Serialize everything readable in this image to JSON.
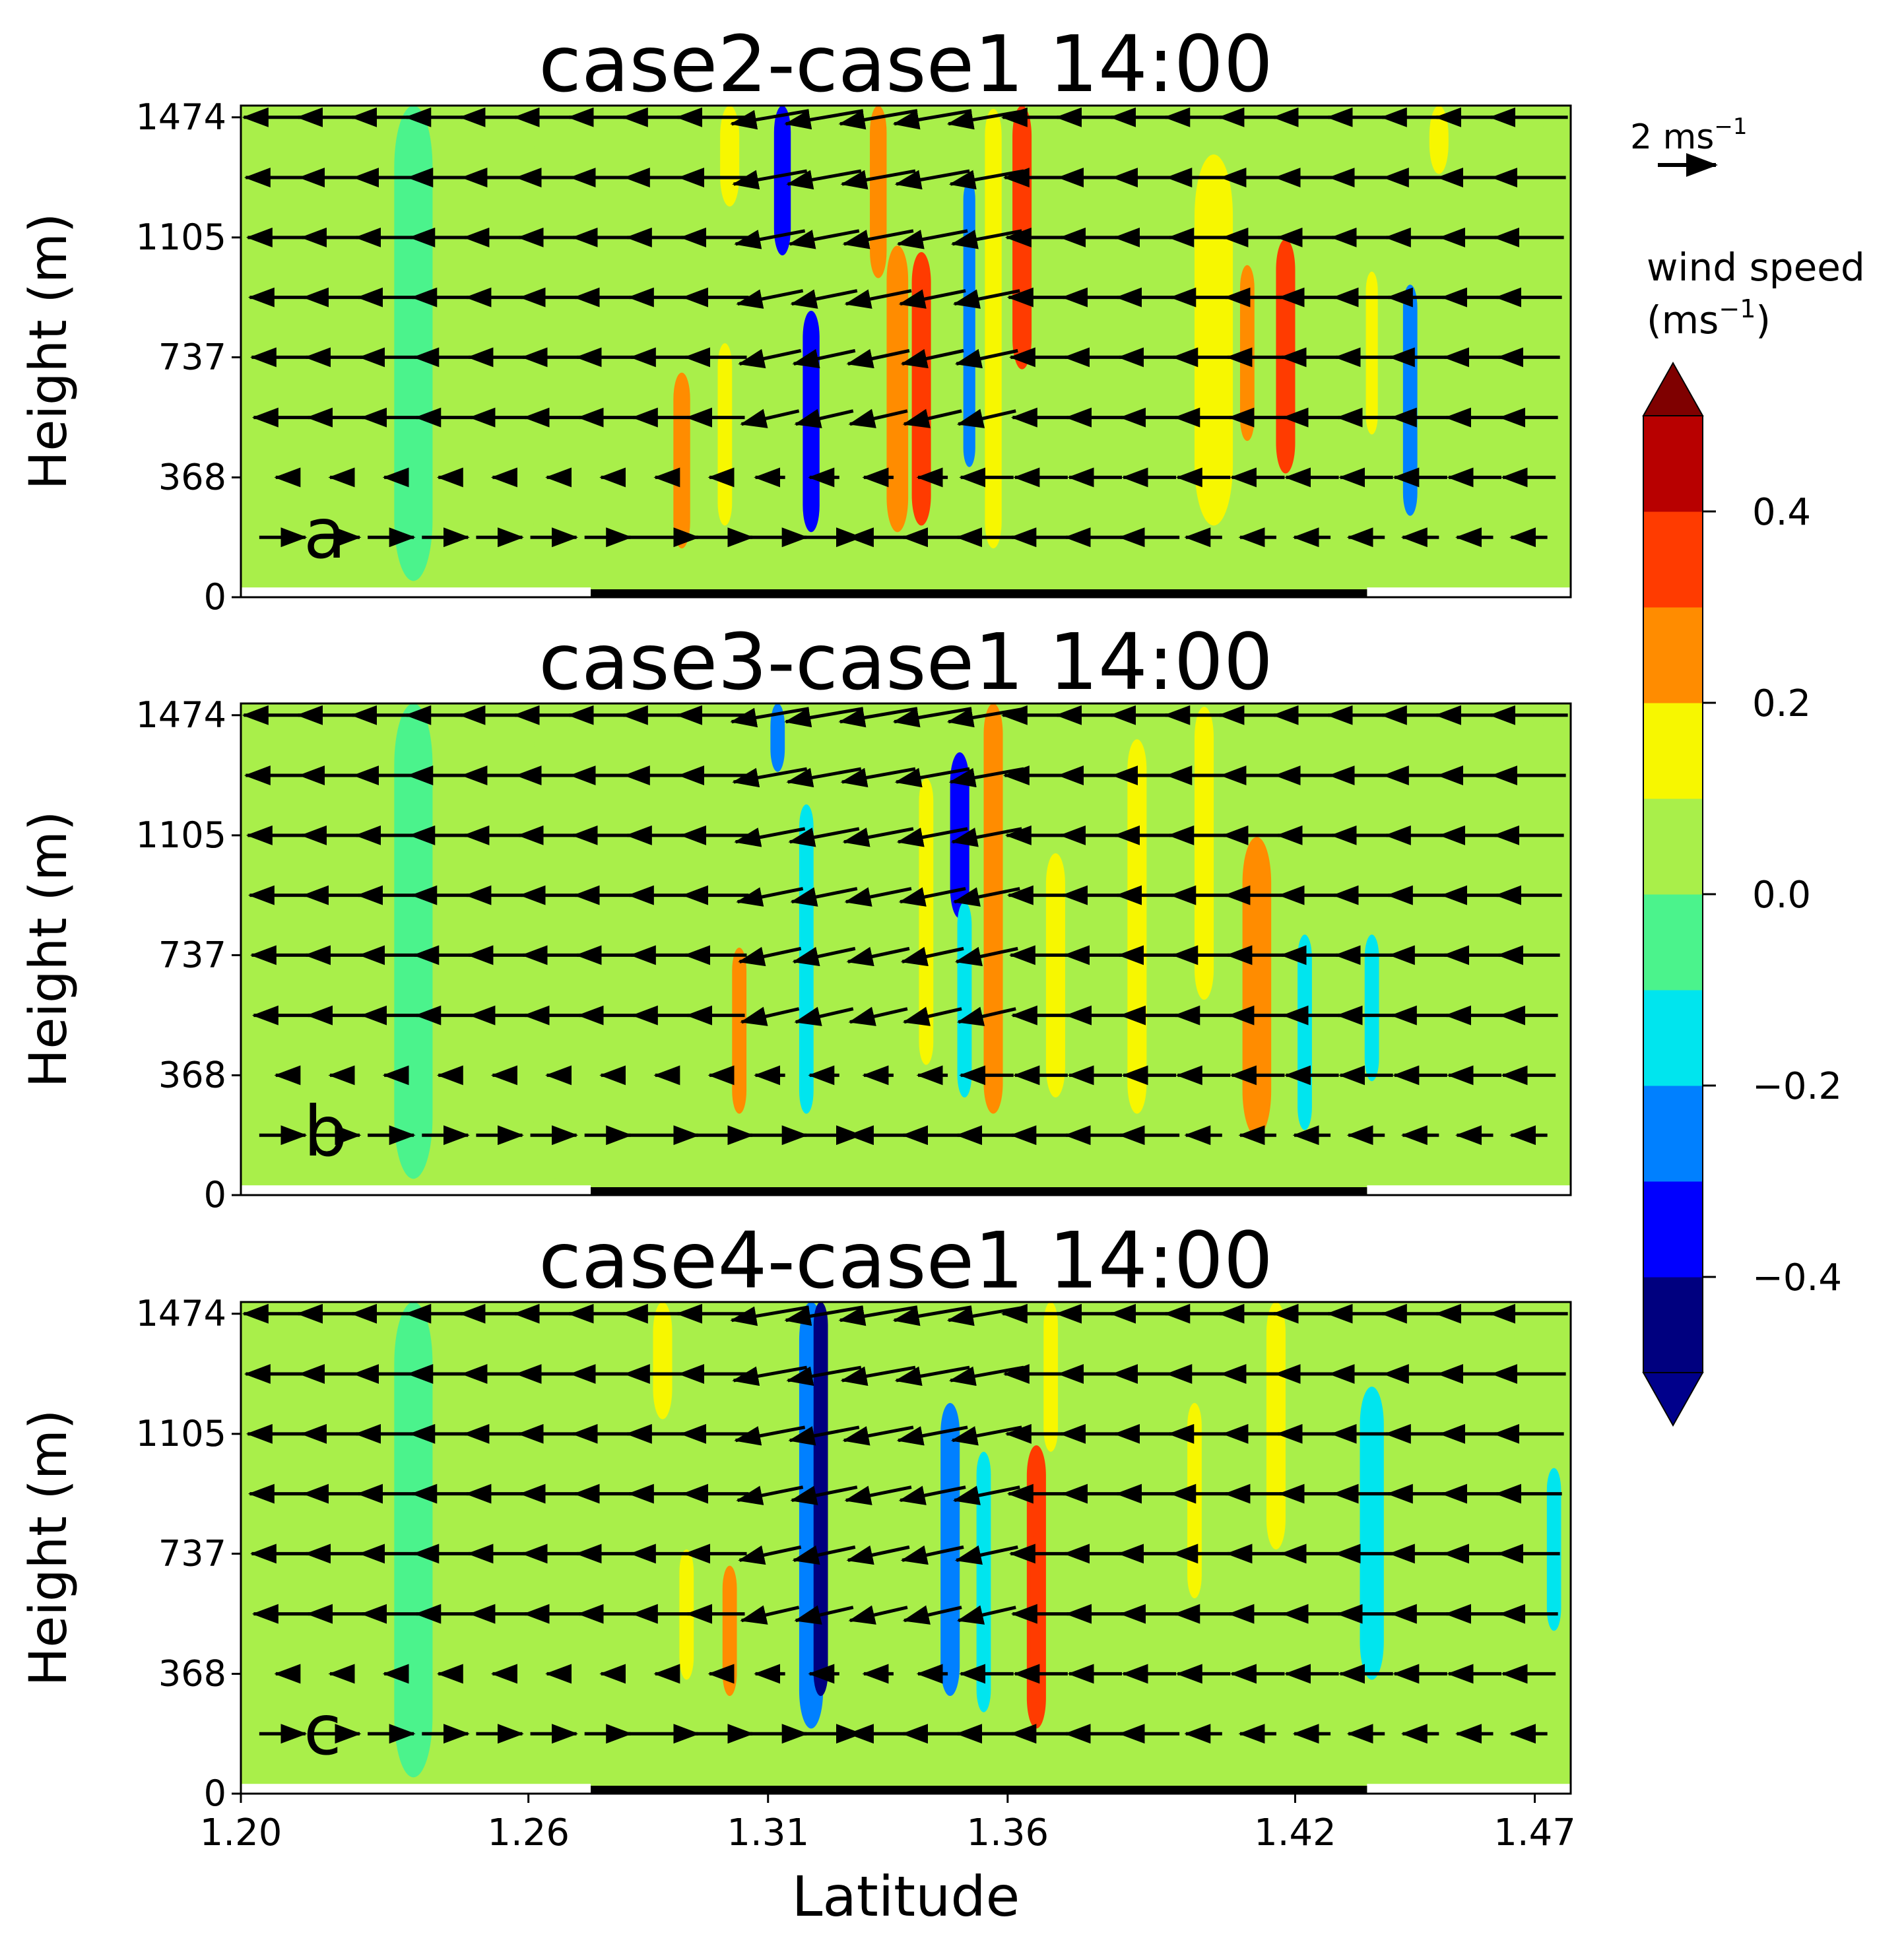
{
  "chart_data": [
    {
      "type": "heatmap",
      "subtype": "filled-contour with wind vectors",
      "panel_label": "a",
      "title": "case2-case1 14:00",
      "xlabel": "",
      "ylabel": "Height (m)",
      "x_ticks": [
        1.2,
        1.26,
        1.31,
        1.36,
        1.42,
        1.47
      ],
      "x_tick_labels": [
        "1.20",
        "1.26",
        "1.31",
        "1.36",
        "1.42",
        "1.47"
      ],
      "y_ticks": [
        0,
        368,
        737,
        1105,
        1474
      ],
      "y_tick_labels": [
        "0",
        "368",
        "737",
        "1105",
        "1474"
      ],
      "xlim": [
        1.2,
        1.4775
      ],
      "ylim": [
        0,
        1510
      ],
      "land_segment": [
        1.273,
        1.435
      ],
      "features": [
        {
          "lat": 1.292,
          "z0": 150,
          "z1": 690,
          "w": 0.0035,
          "v": 0.27
        },
        {
          "lat": 1.301,
          "z0": 220,
          "z1": 780,
          "w": 0.003,
          "v": 0.16
        },
        {
          "lat": 1.302,
          "z0": 1200,
          "z1": 1510,
          "w": 0.004,
          "v": 0.16
        },
        {
          "lat": 1.313,
          "z0": 1050,
          "z1": 1510,
          "w": 0.0035,
          "v": -0.32
        },
        {
          "lat": 1.319,
          "z0": 200,
          "z1": 880,
          "w": 0.0035,
          "v": -0.38
        },
        {
          "lat": 1.333,
          "z0": 980,
          "z1": 1510,
          "w": 0.0035,
          "v": 0.27
        },
        {
          "lat": 1.337,
          "z0": 200,
          "z1": 1080,
          "w": 0.0045,
          "v": 0.22
        },
        {
          "lat": 1.342,
          "z0": 220,
          "z1": 1060,
          "w": 0.004,
          "v": 0.32
        },
        {
          "lat": 1.352,
          "z0": 400,
          "z1": 1280,
          "w": 0.0025,
          "v": -0.3
        },
        {
          "lat": 1.357,
          "z0": 150,
          "z1": 1500,
          "w": 0.0035,
          "v": 0.15
        },
        {
          "lat": 1.363,
          "z0": 700,
          "z1": 1510,
          "w": 0.004,
          "v": 0.34
        },
        {
          "lat": 1.403,
          "z0": 220,
          "z1": 1360,
          "w": 0.008,
          "v": 0.18
        },
        {
          "lat": 1.41,
          "z0": 480,
          "z1": 1020,
          "w": 0.003,
          "v": 0.27
        },
        {
          "lat": 1.418,
          "z0": 380,
          "z1": 1100,
          "w": 0.004,
          "v": 0.3
        },
        {
          "lat": 1.436,
          "z0": 500,
          "z1": 1000,
          "w": 0.0025,
          "v": 0.15
        },
        {
          "lat": 1.444,
          "z0": 250,
          "z1": 960,
          "w": 0.003,
          "v": -0.27
        },
        {
          "lat": 1.45,
          "z0": 1300,
          "z1": 1510,
          "w": 0.004,
          "v": 0.13
        },
        {
          "lat": 1.236,
          "z0": 50,
          "z1": 1510,
          "w": 0.008,
          "v": -0.07
        },
        {
          "lat": 1.265,
          "z0": 50,
          "z1": 1510,
          "w": 0.008,
          "v": 0.06
        },
        {
          "lat": 1.469,
          "z0": 50,
          "z1": 1510,
          "w": 0.007,
          "v": 0.06
        }
      ]
    },
    {
      "type": "heatmap",
      "subtype": "filled-contour with wind vectors",
      "panel_label": "b",
      "title": "case3-case1 14:00",
      "xlabel": "",
      "ylabel": "Height (m)",
      "x_ticks": [
        1.2,
        1.26,
        1.31,
        1.36,
        1.42,
        1.47
      ],
      "x_tick_labels": [
        "1.20",
        "1.26",
        "1.31",
        "1.36",
        "1.42",
        "1.47"
      ],
      "y_ticks": [
        0,
        368,
        737,
        1105,
        1474
      ],
      "y_tick_labels": [
        "0",
        "368",
        "737",
        "1105",
        "1474"
      ],
      "xlim": [
        1.2,
        1.4775
      ],
      "ylim": [
        0,
        1510
      ],
      "land_segment": [
        1.273,
        1.435
      ],
      "features": [
        {
          "lat": 1.304,
          "z0": 250,
          "z1": 760,
          "w": 0.003,
          "v": 0.25
        },
        {
          "lat": 1.312,
          "z0": 1300,
          "z1": 1510,
          "w": 0.003,
          "v": -0.3
        },
        {
          "lat": 1.318,
          "z0": 250,
          "z1": 1200,
          "w": 0.003,
          "v": -0.15
        },
        {
          "lat": 1.343,
          "z0": 400,
          "z1": 1280,
          "w": 0.003,
          "v": 0.12
        },
        {
          "lat": 1.35,
          "z0": 850,
          "z1": 1360,
          "w": 0.004,
          "v": -0.35
        },
        {
          "lat": 1.351,
          "z0": 300,
          "z1": 900,
          "w": 0.003,
          "v": -0.15
        },
        {
          "lat": 1.357,
          "z0": 250,
          "z1": 1510,
          "w": 0.004,
          "v": 0.2
        },
        {
          "lat": 1.37,
          "z0": 300,
          "z1": 1050,
          "w": 0.004,
          "v": 0.12
        },
        {
          "lat": 1.387,
          "z0": 250,
          "z1": 1400,
          "w": 0.004,
          "v": 0.14
        },
        {
          "lat": 1.401,
          "z0": 600,
          "z1": 1500,
          "w": 0.004,
          "v": 0.17
        },
        {
          "lat": 1.412,
          "z0": 180,
          "z1": 1100,
          "w": 0.006,
          "v": 0.2
        },
        {
          "lat": 1.422,
          "z0": 200,
          "z1": 800,
          "w": 0.003,
          "v": -0.15
        },
        {
          "lat": 1.436,
          "z0": 350,
          "z1": 800,
          "w": 0.003,
          "v": -0.12
        },
        {
          "lat": 1.236,
          "z0": 50,
          "z1": 1510,
          "w": 0.008,
          "v": -0.07
        },
        {
          "lat": 1.265,
          "z0": 50,
          "z1": 1510,
          "w": 0.008,
          "v": 0.06
        },
        {
          "lat": 1.469,
          "z0": 50,
          "z1": 1510,
          "w": 0.007,
          "v": 0.06
        }
      ]
    },
    {
      "type": "heatmap",
      "subtype": "filled-contour with wind vectors",
      "panel_label": "c",
      "title": "case4-case1 14:00",
      "xlabel": "Latitude",
      "ylabel": "Height (m)",
      "x_ticks": [
        1.2,
        1.26,
        1.31,
        1.36,
        1.42,
        1.47
      ],
      "x_tick_labels": [
        "1.20",
        "1.26",
        "1.31",
        "1.36",
        "1.42",
        "1.47"
      ],
      "y_ticks": [
        0,
        368,
        737,
        1105,
        1474
      ],
      "y_tick_labels": [
        "0",
        "368",
        "737",
        "1105",
        "1474"
      ],
      "xlim": [
        1.2,
        1.4775
      ],
      "ylim": [
        0,
        1510
      ],
      "land_segment": [
        1.273,
        1.435
      ],
      "features": [
        {
          "lat": 1.288,
          "z0": 1150,
          "z1": 1510,
          "w": 0.004,
          "v": 0.16
        },
        {
          "lat": 1.293,
          "z0": 350,
          "z1": 750,
          "w": 0.003,
          "v": 0.15
        },
        {
          "lat": 1.302,
          "z0": 300,
          "z1": 700,
          "w": 0.003,
          "v": 0.2
        },
        {
          "lat": 1.319,
          "z0": 200,
          "z1": 1510,
          "w": 0.005,
          "v": -0.3
        },
        {
          "lat": 1.321,
          "z0": 300,
          "z1": 1510,
          "w": 0.003,
          "v": -0.42
        },
        {
          "lat": 1.348,
          "z0": 300,
          "z1": 1200,
          "w": 0.004,
          "v": -0.3
        },
        {
          "lat": 1.355,
          "z0": 250,
          "z1": 1050,
          "w": 0.003,
          "v": -0.15
        },
        {
          "lat": 1.366,
          "z0": 200,
          "z1": 1070,
          "w": 0.004,
          "v": 0.3
        },
        {
          "lat": 1.366,
          "z0": 280,
          "z1": 800,
          "w": 0.0025,
          "v": 0.37
        },
        {
          "lat": 1.369,
          "z0": 1050,
          "z1": 1510,
          "w": 0.003,
          "v": 0.12
        },
        {
          "lat": 1.399,
          "z0": 600,
          "z1": 1200,
          "w": 0.003,
          "v": 0.13
        },
        {
          "lat": 1.416,
          "z0": 750,
          "z1": 1510,
          "w": 0.004,
          "v": 0.17
        },
        {
          "lat": 1.436,
          "z0": 350,
          "z1": 1250,
          "w": 0.005,
          "v": -0.15
        },
        {
          "lat": 1.474,
          "z0": 500,
          "z1": 1000,
          "w": 0.003,
          "v": -0.15
        },
        {
          "lat": 1.236,
          "z0": 50,
          "z1": 1510,
          "w": 0.008,
          "v": -0.07
        },
        {
          "lat": 1.265,
          "z0": 50,
          "z1": 1510,
          "w": 0.008,
          "v": 0.06
        },
        {
          "lat": 1.469,
          "z0": 50,
          "z1": 1510,
          "w": 0.007,
          "v": 0.06
        }
      ]
    }
  ],
  "wind_vectors": {
    "levels_m": [
      184,
      368,
      552,
      737,
      921,
      1105,
      1289,
      1474
    ],
    "reference_speed_ms": 2,
    "reference_label": "2 ms",
    "reference_label_exp": "−1"
  },
  "colorbar": {
    "title_line1": "wind speed",
    "title_line2": "(ms",
    "title_line2_exp": "−1",
    "title_line2_end": ")",
    "extend": "both",
    "boundaries": [
      -0.5,
      -0.4,
      -0.3,
      -0.2,
      -0.1,
      0.0,
      0.1,
      0.2,
      0.3,
      0.4,
      0.5
    ],
    "colors": [
      "#00007f",
      "#0000ff",
      "#0080ff",
      "#00e5ee",
      "#4bf38c",
      "#a9ef4a",
      "#f7f700",
      "#ff8c00",
      "#ff3b00",
      "#b80000"
    ],
    "extend_low_color": "#00008b",
    "extend_high_color": "#7f0000",
    "ticks": [
      0.4,
      0.2,
      0.0,
      -0.2,
      -0.4
    ],
    "tick_labels": [
      "0.4",
      "0.2",
      "0.0",
      "−0.2",
      "−0.4"
    ]
  }
}
